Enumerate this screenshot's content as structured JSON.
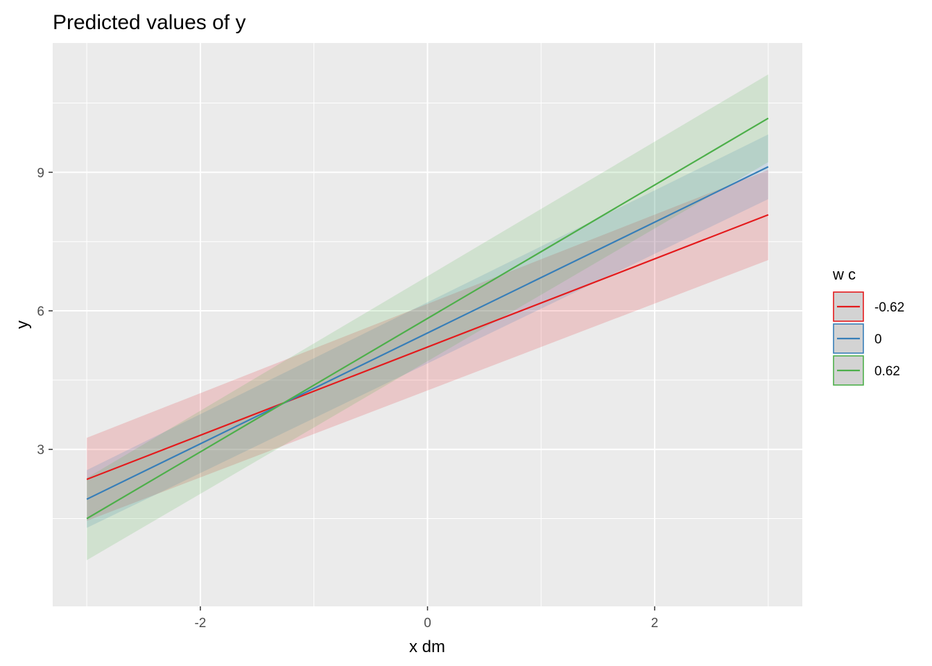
{
  "chart_data": {
    "type": "line",
    "title": "Predicted values of y",
    "xlabel": "x dm",
    "ylabel": "y",
    "xlim": [
      -3.3,
      3.3
    ],
    "ylim": [
      -0.4,
      11.8
    ],
    "x_ticks": [
      -2,
      0,
      2
    ],
    "x_tick_labels": [
      "-2",
      "0",
      "2"
    ],
    "y_ticks": [
      3,
      6,
      9
    ],
    "y_tick_labels": [
      "3",
      "6",
      "9"
    ],
    "grid": true,
    "legend": {
      "title": "w c",
      "position": "right"
    },
    "series": [
      {
        "name": "-0.62",
        "color": "#E41A1C",
        "x": [
          -3,
          3
        ],
        "y": [
          2.35,
          8.08
        ],
        "ci_low": [
          1.45,
          7.1
        ],
        "ci_high": [
          3.25,
          9.05
        ]
      },
      {
        "name": "0",
        "color": "#377EB8",
        "x": [
          -3,
          3
        ],
        "y": [
          1.92,
          9.12
        ],
        "ci_low": [
          1.3,
          8.42
        ],
        "ci_high": [
          2.55,
          9.82
        ]
      },
      {
        "name": "0.62",
        "color": "#4DAF4A",
        "x": [
          -3,
          3
        ],
        "y": [
          1.5,
          10.17
        ],
        "ci_low": [
          0.6,
          9.22
        ],
        "ci_high": [
          2.38,
          11.12
        ]
      }
    ]
  }
}
